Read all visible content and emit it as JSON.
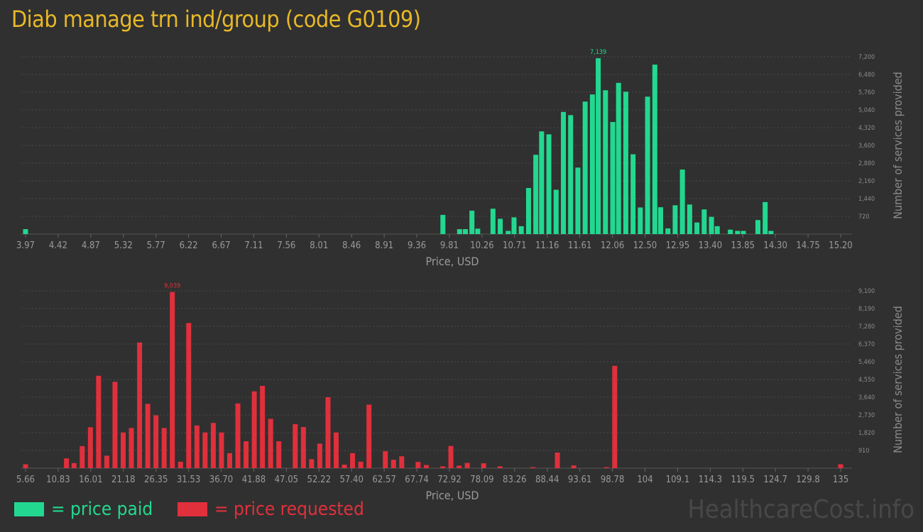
{
  "title": "Diab manage trn ind/group (code G0109)",
  "legend": {
    "paid": "= price paid",
    "requested": "= price requested"
  },
  "watermark": "HealthcareCost.info",
  "colors": {
    "paid": "#22d890",
    "requested": "#e0303c",
    "title": "#e8b828",
    "background": "#303030"
  },
  "chart_data": [
    {
      "type": "bar",
      "xlabel": "Price, USD",
      "ylabel": "Number of services provided",
      "x_ticks": [
        "3.97",
        "4.42",
        "4.87",
        "5.32",
        "5.77",
        "6.22",
        "6.67",
        "7.11",
        "7.56",
        "8.01",
        "8.46",
        "8.91",
        "9.36",
        "9.81",
        "10.26",
        "10.71",
        "11.16",
        "11.61",
        "12.06",
        "12.50",
        "12.95",
        "13.40",
        "13.85",
        "14.30",
        "14.75",
        "15.20"
      ],
      "y_ticks": [
        "720",
        "1,440",
        "2,160",
        "2,880",
        "3,600",
        "4,320",
        "5,040",
        "5,760",
        "6,480",
        "7,200"
      ],
      "ylim": [
        0,
        7200
      ],
      "x_range": [
        3.97,
        15.2
      ],
      "peak_label": "7,139",
      "bars": [
        {
          "x": 3.97,
          "y": 200
        },
        {
          "x": 9.72,
          "y": 780
        },
        {
          "x": 9.95,
          "y": 200
        },
        {
          "x": 10.03,
          "y": 200
        },
        {
          "x": 10.12,
          "y": 950
        },
        {
          "x": 10.2,
          "y": 220
        },
        {
          "x": 10.41,
          "y": 1030
        },
        {
          "x": 10.51,
          "y": 620
        },
        {
          "x": 10.62,
          "y": 130
        },
        {
          "x": 10.7,
          "y": 680
        },
        {
          "x": 10.8,
          "y": 320
        },
        {
          "x": 10.9,
          "y": 1870
        },
        {
          "x": 11.0,
          "y": 3220
        },
        {
          "x": 11.08,
          "y": 4170
        },
        {
          "x": 11.18,
          "y": 4050
        },
        {
          "x": 11.28,
          "y": 1800
        },
        {
          "x": 11.38,
          "y": 4960
        },
        {
          "x": 11.48,
          "y": 4830
        },
        {
          "x": 11.58,
          "y": 2700
        },
        {
          "x": 11.68,
          "y": 5380
        },
        {
          "x": 11.78,
          "y": 5670
        },
        {
          "x": 11.86,
          "y": 7139
        },
        {
          "x": 11.96,
          "y": 5840
        },
        {
          "x": 12.06,
          "y": 4550
        },
        {
          "x": 12.14,
          "y": 6140
        },
        {
          "x": 12.24,
          "y": 5780
        },
        {
          "x": 12.34,
          "y": 3240
        },
        {
          "x": 12.44,
          "y": 1080
        },
        {
          "x": 12.54,
          "y": 5580
        },
        {
          "x": 12.64,
          "y": 6880
        },
        {
          "x": 12.72,
          "y": 1090
        },
        {
          "x": 12.82,
          "y": 230
        },
        {
          "x": 12.92,
          "y": 1170
        },
        {
          "x": 13.02,
          "y": 2620
        },
        {
          "x": 13.12,
          "y": 1200
        },
        {
          "x": 13.22,
          "y": 470
        },
        {
          "x": 13.32,
          "y": 1000
        },
        {
          "x": 13.42,
          "y": 700
        },
        {
          "x": 13.5,
          "y": 320
        },
        {
          "x": 13.68,
          "y": 180
        },
        {
          "x": 13.78,
          "y": 130
        },
        {
          "x": 13.86,
          "y": 130
        },
        {
          "x": 14.06,
          "y": 570
        },
        {
          "x": 14.16,
          "y": 1300
        },
        {
          "x": 14.24,
          "y": 130
        }
      ]
    },
    {
      "type": "bar",
      "xlabel": "Price, USD",
      "ylabel": "Number of services provided",
      "x_ticks": [
        "5.66",
        "10.83",
        "16.01",
        "21.18",
        "26.35",
        "31.53",
        "36.70",
        "41.88",
        "47.05",
        "52.22",
        "57.40",
        "62.57",
        "67.74",
        "72.92",
        "78.09",
        "83.26",
        "88.44",
        "93.61",
        "98.78",
        "104",
        "109.1",
        "114.3",
        "119.5",
        "124.7",
        "129.8",
        "135"
      ],
      "y_ticks": [
        "910",
        "1,820",
        "2,730",
        "3,640",
        "4,550",
        "5,460",
        "6,370",
        "7,280",
        "8,190",
        "9,100"
      ],
      "ylim": [
        0,
        9100
      ],
      "x_range": [
        5.66,
        135
      ],
      "peak_label": "9,039",
      "bars": [
        {
          "x": 5.66,
          "y": 200
        },
        {
          "x": 12.15,
          "y": 500
        },
        {
          "x": 13.35,
          "y": 260
        },
        {
          "x": 14.65,
          "y": 1130
        },
        {
          "x": 15.95,
          "y": 2100
        },
        {
          "x": 17.25,
          "y": 4740
        },
        {
          "x": 18.55,
          "y": 640
        },
        {
          "x": 19.85,
          "y": 4430
        },
        {
          "x": 21.15,
          "y": 1830
        },
        {
          "x": 22.45,
          "y": 2060
        },
        {
          "x": 23.75,
          "y": 6450
        },
        {
          "x": 25.05,
          "y": 3300
        },
        {
          "x": 26.35,
          "y": 2710
        },
        {
          "x": 27.65,
          "y": 2060
        },
        {
          "x": 28.95,
          "y": 9039
        },
        {
          "x": 30.25,
          "y": 330
        },
        {
          "x": 31.55,
          "y": 7450
        },
        {
          "x": 32.85,
          "y": 2190
        },
        {
          "x": 34.15,
          "y": 1830
        },
        {
          "x": 35.45,
          "y": 2320
        },
        {
          "x": 36.75,
          "y": 1830
        },
        {
          "x": 38.05,
          "y": 770
        },
        {
          "x": 39.35,
          "y": 3320
        },
        {
          "x": 40.65,
          "y": 1380
        },
        {
          "x": 41.95,
          "y": 3940
        },
        {
          "x": 43.25,
          "y": 4220
        },
        {
          "x": 44.55,
          "y": 2530
        },
        {
          "x": 45.85,
          "y": 1380
        },
        {
          "x": 48.45,
          "y": 2260
        },
        {
          "x": 49.75,
          "y": 2110
        },
        {
          "x": 51.05,
          "y": 460
        },
        {
          "x": 52.35,
          "y": 1260
        },
        {
          "x": 53.65,
          "y": 3640
        },
        {
          "x": 54.95,
          "y": 1830
        },
        {
          "x": 56.25,
          "y": 180
        },
        {
          "x": 57.55,
          "y": 770
        },
        {
          "x": 58.85,
          "y": 330
        },
        {
          "x": 60.15,
          "y": 3260
        },
        {
          "x": 62.75,
          "y": 870
        },
        {
          "x": 64.05,
          "y": 430
        },
        {
          "x": 65.35,
          "y": 610
        },
        {
          "x": 67.95,
          "y": 320
        },
        {
          "x": 69.25,
          "y": 160
        },
        {
          "x": 71.85,
          "y": 90
        },
        {
          "x": 73.15,
          "y": 1140
        },
        {
          "x": 74.45,
          "y": 130
        },
        {
          "x": 75.75,
          "y": 270
        },
        {
          "x": 78.35,
          "y": 250
        },
        {
          "x": 80.95,
          "y": 90
        },
        {
          "x": 86.15,
          "y": 50
        },
        {
          "x": 90.05,
          "y": 800
        },
        {
          "x": 92.65,
          "y": 140
        },
        {
          "x": 97.85,
          "y": 50
        },
        {
          "x": 99.15,
          "y": 5250
        },
        {
          "x": 135,
          "y": 200
        }
      ]
    }
  ]
}
